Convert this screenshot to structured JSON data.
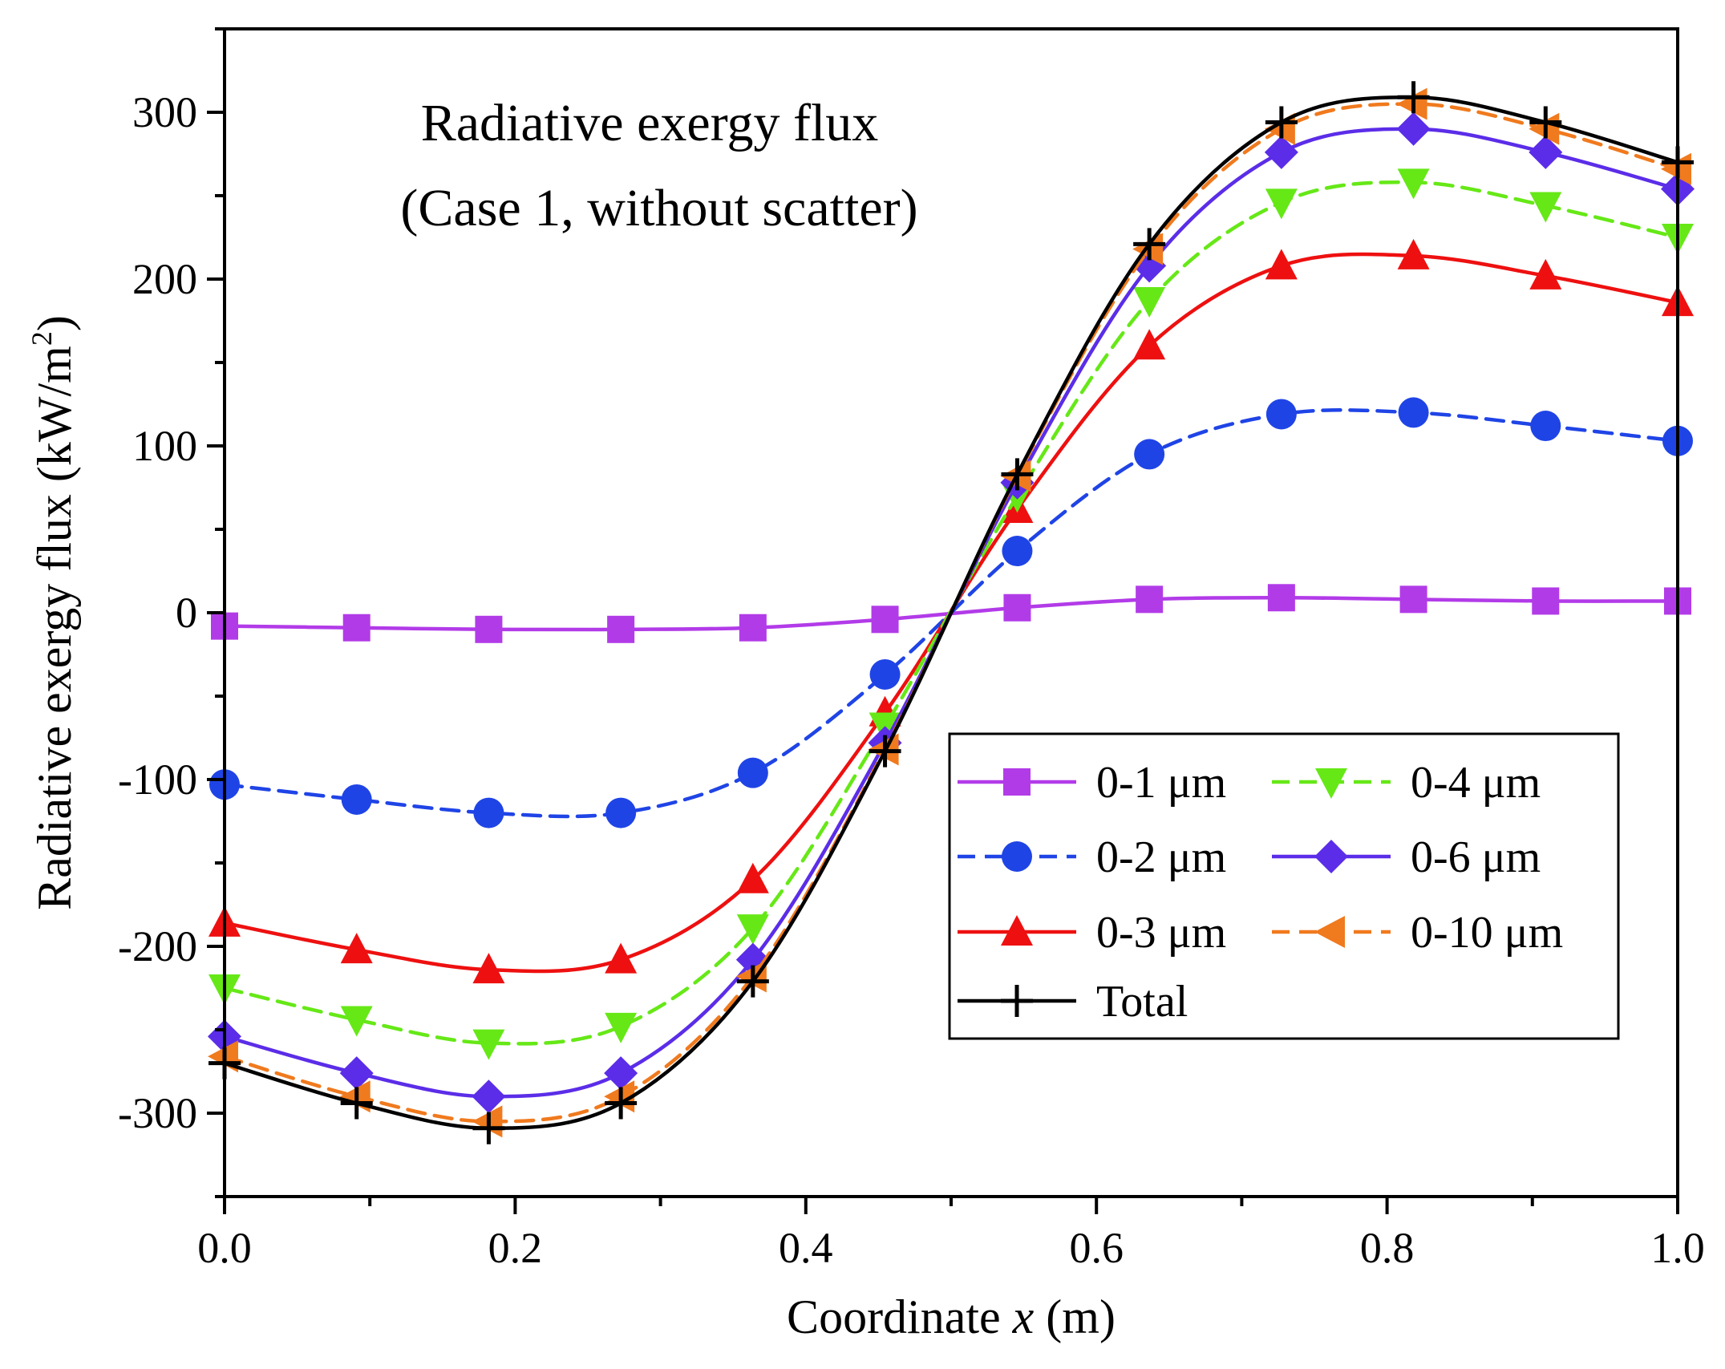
{
  "chart_data": {
    "type": "line",
    "title": "Radiative exergy flux",
    "subtitle": "(Case 1, without scatter)",
    "xlabel": "Coordinate x (m)",
    "xlabel_parts": [
      "Coordinate ",
      "x",
      " (m)"
    ],
    "ylabel": "Radiative exergy flux (kW/m2)",
    "ylabel_parts": [
      "Radiative exergy flux (kW/m",
      "2",
      ")"
    ],
    "xlim": [
      0.0,
      1.0
    ],
    "ylim": [
      -350,
      350
    ],
    "x_ticks": [
      0.0,
      0.2,
      0.4,
      0.6,
      0.8,
      1.0
    ],
    "x_tick_labels": [
      "0.0",
      "0.2",
      "0.4",
      "0.6",
      "0.8",
      "1.0"
    ],
    "y_ticks": [
      -300,
      -200,
      -100,
      0,
      100,
      200,
      300
    ],
    "y_tick_labels": [
      "-300",
      "-200",
      "-100",
      "0",
      "100",
      "200",
      "300"
    ],
    "grid": false,
    "legend_position": "bottom-right",
    "x": [
      0.0,
      0.0909,
      0.1818,
      0.2727,
      0.3636,
      0.4545,
      0.5455,
      0.6364,
      0.7273,
      0.8182,
      0.9091,
      1.0
    ],
    "series": [
      {
        "name": "0-1 μm",
        "color": "#b23be8",
        "dash": "solid",
        "marker": "square",
        "values": [
          -8,
          -9,
          -10,
          -10,
          -9,
          -4,
          3,
          8,
          9,
          8,
          7,
          7
        ]
      },
      {
        "name": "0-2 μm",
        "color": "#1f44e6",
        "dash": "dashed",
        "marker": "circle",
        "values": [
          -103,
          -112,
          -120,
          -120,
          -96,
          -37,
          37,
          95,
          119,
          120,
          112,
          103
        ]
      },
      {
        "name": "0-3 μm",
        "color": "#ee1010",
        "dash": "solid",
        "marker": "triangle-up",
        "values": [
          -186,
          -202,
          -214,
          -208,
          -160,
          -60,
          62,
          160,
          208,
          214,
          202,
          186
        ]
      },
      {
        "name": "0-4 μm",
        "color": "#66e817",
        "dash": "dashed",
        "marker": "triangle-down",
        "values": [
          -225,
          -244,
          -258,
          -248,
          -189,
          -68,
          70,
          187,
          246,
          258,
          244,
          225
        ]
      },
      {
        "name": "0-6 μm",
        "color": "#5b2de8",
        "dash": "solid",
        "marker": "diamond",
        "values": [
          -254,
          -276,
          -290,
          -276,
          -208,
          -78,
          78,
          208,
          276,
          290,
          276,
          254
        ]
      },
      {
        "name": "0-10 μm",
        "color": "#f07a1e",
        "dash": "dashed",
        "marker": "triangle-left",
        "values": [
          -266,
          -290,
          -305,
          -290,
          -218,
          -82,
          82,
          218,
          290,
          305,
          290,
          266
        ]
      },
      {
        "name": "Total",
        "color": "#000000",
        "dash": "solid",
        "marker": "plus",
        "values": [
          -270,
          -294,
          -309,
          -294,
          -221,
          -83,
          83,
          221,
          294,
          309,
          294,
          270
        ]
      }
    ]
  }
}
